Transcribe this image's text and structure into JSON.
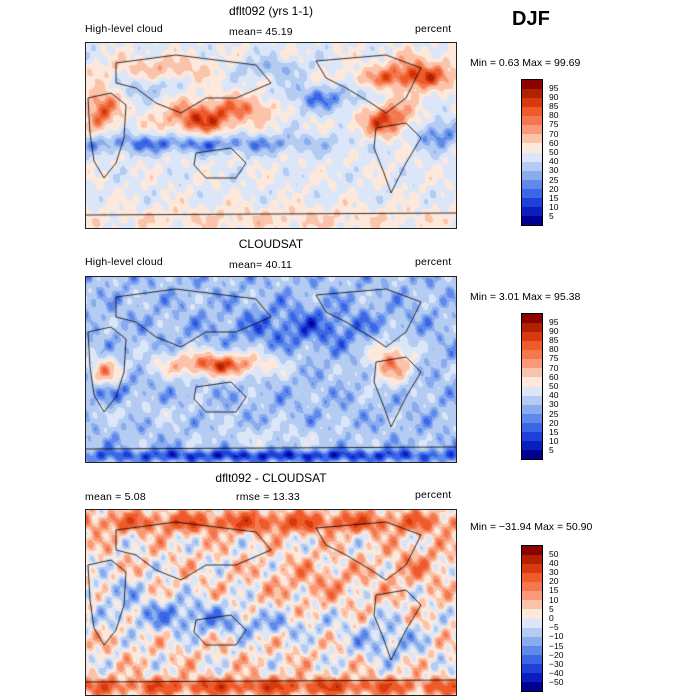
{
  "season": "DJF",
  "panels": [
    {
      "id": "model",
      "title": "dflt092 (yrs 1-1)",
      "left_label": "High-level cloud",
      "center_label": "mean=  45.19",
      "right_label": "percent",
      "minmax": "Min =    0.63 Max =  99.69",
      "levels": [
        "95",
        "90",
        "85",
        "80",
        "75",
        "70",
        "60",
        "50",
        "40",
        "30",
        "25",
        "20",
        "15",
        "10",
        "5"
      ],
      "colors": [
        "#8b0000",
        "#b22200",
        "#d83a10",
        "#ee5a2a",
        "#f4784e",
        "#f89a78",
        "#fbc3aa",
        "#fde8dc",
        "#dbe6f8",
        "#b4cbf2",
        "#8aacee",
        "#5f8aec",
        "#3b66e6",
        "#1f40d8",
        "#0a1ec0",
        "#000090"
      ]
    },
    {
      "id": "obs",
      "title": "CLOUDSAT",
      "left_label": "High-level cloud",
      "center_label": "mean=  40.11",
      "right_label": "percent",
      "minmax": "Min =    3.01 Max =  95.38",
      "levels": [
        "95",
        "90",
        "85",
        "80",
        "75",
        "70",
        "60",
        "50",
        "40",
        "30",
        "25",
        "20",
        "15",
        "10",
        "5"
      ],
      "colors": [
        "#8b0000",
        "#b22200",
        "#d83a10",
        "#ee5a2a",
        "#f4784e",
        "#f89a78",
        "#fbc3aa",
        "#fde8dc",
        "#dbe6f8",
        "#b4cbf2",
        "#8aacee",
        "#5f8aec",
        "#3b66e6",
        "#1f40d8",
        "#0a1ec0",
        "#000090"
      ]
    },
    {
      "id": "diff",
      "title": "dflt092 - CLOUDSAT",
      "left_label": "mean =    5.08",
      "center_label": "rmse =   13.33",
      "right_label": "percent",
      "minmax": "Min = −31.94 Max =  50.90",
      "levels": [
        "50",
        "40",
        "30",
        "20",
        "15",
        "10",
        "5",
        "0",
        "−5",
        "−10",
        "−15",
        "−20",
        "−30",
        "−40",
        "−50"
      ],
      "colors": [
        "#8b0000",
        "#b22200",
        "#d83a10",
        "#ee5a2a",
        "#f4784e",
        "#f89a78",
        "#fbc3aa",
        "#fde8dc",
        "#dbe6f8",
        "#b4cbf2",
        "#8aacee",
        "#5f8aec",
        "#3b66e6",
        "#1f40d8",
        "#0a1ec0",
        "#000090"
      ]
    }
  ],
  "chart_data": [
    {
      "type": "heatmap",
      "title": "dflt092 (yrs 1-1)",
      "variable": "High-level cloud",
      "units": "percent",
      "mean": 45.19,
      "min": 0.63,
      "max": 99.69,
      "contour_levels": [
        5,
        10,
        15,
        20,
        25,
        30,
        40,
        50,
        60,
        70,
        75,
        80,
        85,
        90,
        95
      ]
    },
    {
      "type": "heatmap",
      "title": "CLOUDSAT",
      "variable": "High-level cloud",
      "units": "percent",
      "mean": 40.11,
      "min": 3.01,
      "max": 95.38,
      "contour_levels": [
        5,
        10,
        15,
        20,
        25,
        30,
        40,
        50,
        60,
        70,
        75,
        80,
        85,
        90,
        95
      ]
    },
    {
      "type": "heatmap",
      "title": "dflt092 - CLOUDSAT",
      "units": "percent",
      "mean": 5.08,
      "rmse": 13.33,
      "min": -31.94,
      "max": 50.9,
      "contour_levels": [
        -50,
        -40,
        -30,
        -20,
        -15,
        -10,
        -5,
        0,
        5,
        10,
        15,
        20,
        30,
        40,
        50
      ]
    }
  ]
}
